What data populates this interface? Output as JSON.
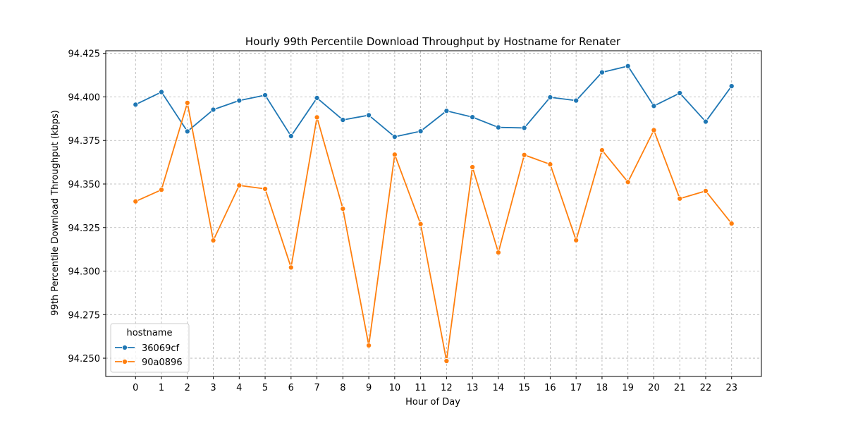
{
  "chart_data": {
    "type": "line",
    "title": "Hourly 99th Percentile Download Throughput by Hostname for Renater",
    "xlabel": "Hour of Day",
    "ylabel": "99th Percentile Download Throughput (kbps)",
    "x": [
      0,
      1,
      2,
      3,
      4,
      5,
      6,
      7,
      8,
      9,
      10,
      11,
      12,
      13,
      14,
      15,
      16,
      17,
      18,
      19,
      20,
      21,
      22,
      23
    ],
    "xlim": [
      -1.15,
      24.15
    ],
    "ylim": [
      94.2395,
      94.4265
    ],
    "yticks": [
      94.25,
      94.275,
      94.3,
      94.325,
      94.35,
      94.375,
      94.4,
      94.425
    ],
    "ytick_labels": [
      "94.250",
      "94.275",
      "94.300",
      "94.325",
      "94.350",
      "94.375",
      "94.400",
      "94.425"
    ],
    "grid": true,
    "legend": {
      "title": "hostname",
      "placement": "lower-left"
    },
    "series": [
      {
        "name": "36069cf",
        "color": "#1f77b4",
        "values": [
          94.3956,
          94.4028,
          94.3802,
          94.3927,
          94.3979,
          94.401,
          94.3775,
          94.3994,
          94.3868,
          94.3895,
          94.3771,
          94.3803,
          94.392,
          94.3884,
          94.3825,
          94.3822,
          94.3998,
          94.3979,
          94.4141,
          94.4177,
          94.3948,
          94.4022,
          94.3858,
          94.4062
        ]
      },
      {
        "name": "90a0896",
        "color": "#ff7f0e",
        "values": [
          94.34,
          94.3467,
          94.3966,
          94.3176,
          94.3492,
          94.3472,
          94.3021,
          94.3883,
          94.3358,
          94.2573,
          94.3669,
          94.327,
          94.2484,
          94.3597,
          94.3107,
          94.3667,
          94.3613,
          94.3177,
          94.3694,
          94.3511,
          94.3809,
          94.3416,
          94.346,
          94.3273
        ]
      }
    ]
  }
}
